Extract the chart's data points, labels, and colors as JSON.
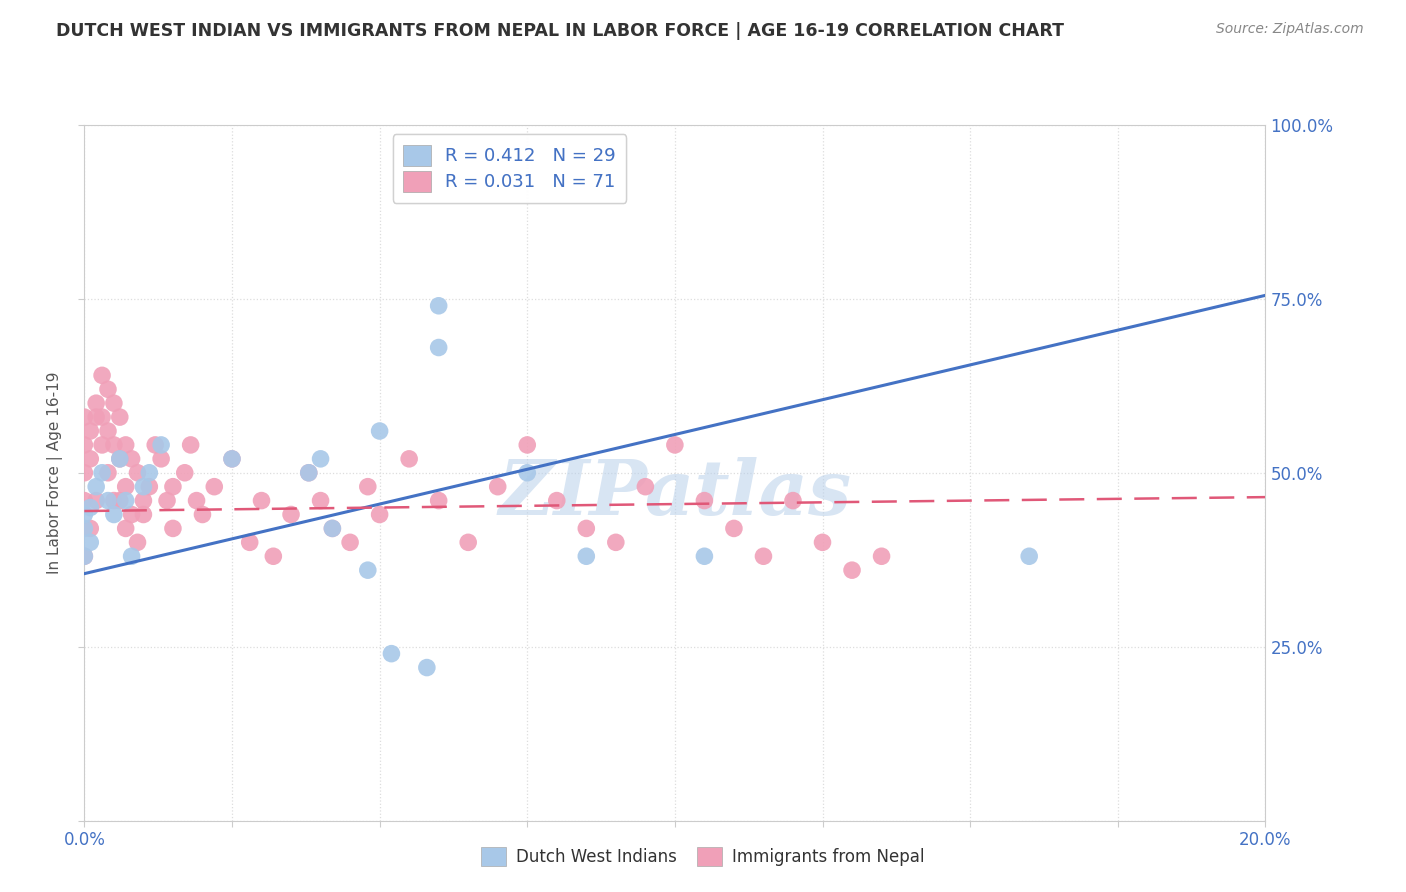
{
  "title": "DUTCH WEST INDIAN VS IMMIGRANTS FROM NEPAL IN LABOR FORCE | AGE 16-19 CORRELATION CHART",
  "source": "Source: ZipAtlas.com",
  "ylabel": "In Labor Force | Age 16-19",
  "xlim": [
    0.0,
    0.2
  ],
  "ylim": [
    0.0,
    1.0
  ],
  "xtick_positions": [
    0.0,
    0.025,
    0.05,
    0.075,
    0.1,
    0.125,
    0.15,
    0.175,
    0.2
  ],
  "ytick_positions": [
    0.0,
    0.25,
    0.5,
    0.75,
    1.0
  ],
  "blue_scatter_color": "#A8C8E8",
  "pink_scatter_color": "#F0A0B8",
  "blue_line_color": "#4472C4",
  "pink_line_color": "#E05878",
  "R_blue": 0.412,
  "N_blue": 29,
  "R_pink": 0.031,
  "N_pink": 71,
  "watermark": "ZIPatlas",
  "blue_line_x": [
    0.0,
    0.2
  ],
  "blue_line_y": [
    0.355,
    0.755
  ],
  "pink_line_x": [
    0.0,
    0.2
  ],
  "pink_line_y": [
    0.445,
    0.465
  ],
  "blue_points_x": [
    0.0,
    0.0,
    0.0,
    0.001,
    0.001,
    0.002,
    0.003,
    0.004,
    0.005,
    0.006,
    0.007,
    0.008,
    0.01,
    0.011,
    0.013,
    0.025,
    0.04,
    0.05,
    0.06,
    0.06,
    0.075,
    0.085,
    0.105,
    0.16,
    0.038,
    0.042,
    0.048,
    0.052,
    0.058
  ],
  "blue_points_y": [
    0.42,
    0.38,
    0.44,
    0.45,
    0.4,
    0.48,
    0.5,
    0.46,
    0.44,
    0.52,
    0.46,
    0.38,
    0.48,
    0.5,
    0.54,
    0.52,
    0.52,
    0.56,
    0.68,
    0.74,
    0.5,
    0.38,
    0.38,
    0.38,
    0.5,
    0.42,
    0.36,
    0.24,
    0.22
  ],
  "pink_points_x": [
    0.0,
    0.0,
    0.0,
    0.0,
    0.0,
    0.001,
    0.001,
    0.001,
    0.002,
    0.002,
    0.002,
    0.003,
    0.003,
    0.003,
    0.004,
    0.004,
    0.004,
    0.005,
    0.005,
    0.005,
    0.006,
    0.006,
    0.006,
    0.007,
    0.007,
    0.007,
    0.008,
    0.008,
    0.009,
    0.009,
    0.01,
    0.01,
    0.011,
    0.012,
    0.013,
    0.014,
    0.015,
    0.015,
    0.017,
    0.018,
    0.019,
    0.02,
    0.022,
    0.025,
    0.028,
    0.03,
    0.032,
    0.035,
    0.038,
    0.04,
    0.042,
    0.045,
    0.048,
    0.05,
    0.055,
    0.06,
    0.065,
    0.07,
    0.075,
    0.08,
    0.085,
    0.09,
    0.095,
    0.1,
    0.105,
    0.11,
    0.115,
    0.12,
    0.125,
    0.13,
    0.135
  ],
  "pink_points_y": [
    0.46,
    0.5,
    0.54,
    0.58,
    0.38,
    0.52,
    0.56,
    0.42,
    0.6,
    0.58,
    0.46,
    0.64,
    0.58,
    0.54,
    0.62,
    0.56,
    0.5,
    0.6,
    0.54,
    0.46,
    0.58,
    0.52,
    0.46,
    0.54,
    0.48,
    0.42,
    0.52,
    0.44,
    0.4,
    0.5,
    0.46,
    0.44,
    0.48,
    0.54,
    0.52,
    0.46,
    0.48,
    0.42,
    0.5,
    0.54,
    0.46,
    0.44,
    0.48,
    0.52,
    0.4,
    0.46,
    0.38,
    0.44,
    0.5,
    0.46,
    0.42,
    0.4,
    0.48,
    0.44,
    0.52,
    0.46,
    0.4,
    0.48,
    0.54,
    0.46,
    0.42,
    0.4,
    0.48,
    0.54,
    0.46,
    0.42,
    0.38,
    0.46,
    0.4,
    0.36,
    0.38
  ],
  "background_color": "#FFFFFF",
  "grid_color": "#DDDDDD",
  "title_color": "#333333",
  "axis_label_color": "#555555",
  "tick_color": "#4472C4",
  "legend_R_color": "#4472C4"
}
